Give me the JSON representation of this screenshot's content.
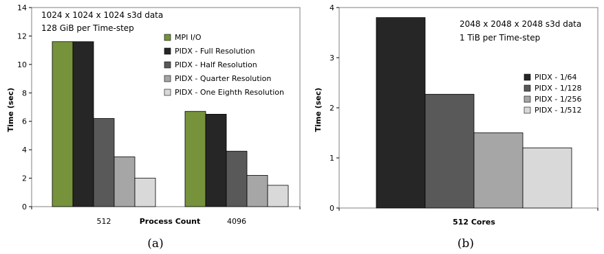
{
  "chart_data": [
    {
      "type": "bar",
      "panel_caption": "(a)",
      "categories": [
        "512",
        "4096"
      ],
      "xlabel": "Process Count",
      "ylabel": "Time (sec)",
      "ylim": [
        0,
        14
      ],
      "yticks": [
        0,
        2,
        4,
        6,
        8,
        10,
        12,
        14
      ],
      "annotations": [
        "1024 x 1024 x 1024  s3d data",
        "128 GiB per Time-step"
      ],
      "legend_placement": "top-right",
      "grid": false,
      "series": [
        {
          "name": "MPI I/O",
          "color": "#76933c",
          "values": [
            11.6,
            6.7
          ]
        },
        {
          "name": "PIDX - Full Resolution",
          "color": "#262626",
          "values": [
            11.6,
            6.5
          ]
        },
        {
          "name": "PIDX - Half Resolution",
          "color": "#595959",
          "values": [
            6.2,
            3.9
          ]
        },
        {
          "name": "PIDX - Quarter Resolution",
          "color": "#a6a6a6",
          "values": [
            3.5,
            2.2
          ]
        },
        {
          "name": "PIDX - One Eighth Resolution",
          "color": "#d9d9d9",
          "values": [
            2.0,
            1.5
          ]
        }
      ]
    },
    {
      "type": "bar",
      "panel_caption": "(b)",
      "categories": [
        "512 Cores"
      ],
      "xlabel": "",
      "ylabel": "Time (sec)",
      "ylim": [
        0,
        4
      ],
      "yticks": [
        0,
        1,
        2,
        3,
        4
      ],
      "annotations": [
        "2048 x 2048 x 2048  s3d data",
        "1 TiB per Time-step"
      ],
      "legend_placement": "right",
      "grid": false,
      "series": [
        {
          "name": "PIDX - 1/64",
          "color": "#262626",
          "values": [
            3.8
          ]
        },
        {
          "name": "PIDX - 1/128",
          "color": "#595959",
          "values": [
            2.27
          ]
        },
        {
          "name": "PIDX - 1/256",
          "color": "#a6a6a6",
          "values": [
            1.5
          ]
        },
        {
          "name": "PIDX - 1/512",
          "color": "#d9d9d9",
          "values": [
            1.2
          ]
        }
      ]
    }
  ]
}
